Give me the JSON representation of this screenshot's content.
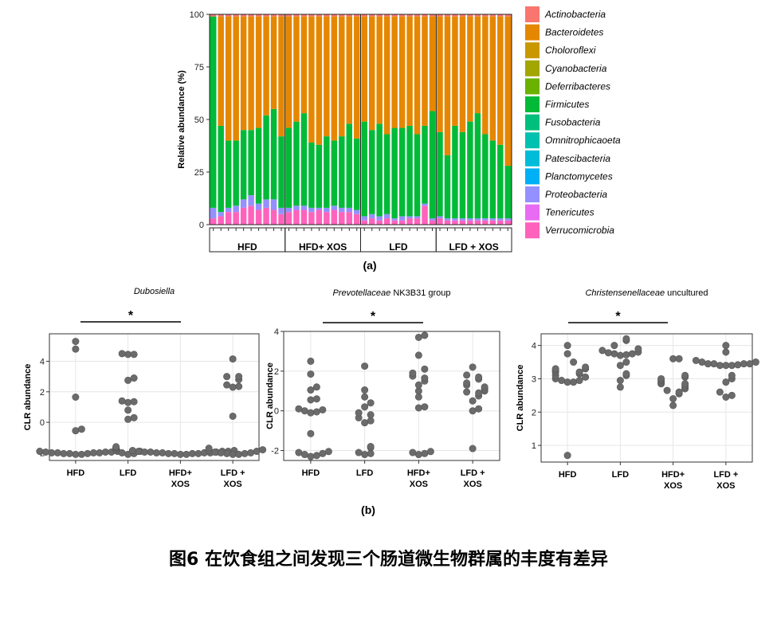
{
  "chart_data": [
    {
      "type": "stacked-bar",
      "panel_label": "(a)",
      "ylabel": "Relative abundance (%)",
      "ylim": [
        0,
        100
      ],
      "yticks": [
        0,
        25,
        50,
        75,
        100
      ],
      "groups": [
        "HFD",
        "HFD+ XOS",
        "LFD",
        "LFD + XOS"
      ],
      "bars_per_group": 10,
      "legend": [
        {
          "name": "Actinobacteria",
          "color": "#F8766D"
        },
        {
          "name": "Bacteroidetes",
          "color": "#E58700"
        },
        {
          "name": "Choloroflexi",
          "color": "#C99800"
        },
        {
          "name": "Cyanobacteria",
          "color": "#A3A500"
        },
        {
          "name": "Deferribacteres",
          "color": "#6BB100"
        },
        {
          "name": "Firmicutes",
          "color": "#00BA38"
        },
        {
          "name": "Fusobacteria",
          "color": "#00BF7D"
        },
        {
          "name": "Omnitrophicaoeta",
          "color": "#00C0AF"
        },
        {
          "name": "Patescibacteria",
          "color": "#00BCD8"
        },
        {
          "name": "Planctomycetes",
          "color": "#00B0F6"
        },
        {
          "name": "Proteobacteria",
          "color": "#9590FF"
        },
        {
          "name": "Tenericutes",
          "color": "#E76BF3"
        },
        {
          "name": "Verrucomicrobia",
          "color": "#FF62BC"
        }
      ],
      "samples": [
        {
          "group": "HFD",
          "verrucomicrobia": 3,
          "proteobacteria": 5,
          "firmicutes": 91,
          "actinobacteria": 1
        },
        {
          "group": "HFD",
          "verrucomicrobia": 4,
          "proteobacteria": 2,
          "firmicutes": 41,
          "actinobacteria": 1
        },
        {
          "group": "HFD",
          "verrucomicrobia": 6,
          "proteobacteria": 2,
          "firmicutes": 32,
          "actinobacteria": 1
        },
        {
          "group": "HFD",
          "verrucomicrobia": 6,
          "proteobacteria": 3,
          "firmicutes": 31,
          "actinobacteria": 1
        },
        {
          "group": "HFD",
          "verrucomicrobia": 8,
          "proteobacteria": 4,
          "firmicutes": 33,
          "actinobacteria": 1
        },
        {
          "group": "HFD",
          "verrucomicrobia": 9,
          "proteobacteria": 5,
          "firmicutes": 31,
          "actinobacteria": 1
        },
        {
          "group": "HFD",
          "verrucomicrobia": 7,
          "proteobacteria": 3,
          "firmicutes": 36,
          "actinobacteria": 1
        },
        {
          "group": "HFD",
          "verrucomicrobia": 8,
          "proteobacteria": 4,
          "firmicutes": 40,
          "actinobacteria": 1
        },
        {
          "group": "HFD",
          "verrucomicrobia": 7,
          "proteobacteria": 5,
          "firmicutes": 43,
          "actinobacteria": 1
        },
        {
          "group": "HFD",
          "verrucomicrobia": 5,
          "proteobacteria": 3,
          "firmicutes": 34,
          "actinobacteria": 1
        },
        {
          "group": "HFD+ XOS",
          "verrucomicrobia": 6,
          "proteobacteria": 2,
          "firmicutes": 38,
          "actinobacteria": 1
        },
        {
          "group": "HFD+ XOS",
          "verrucomicrobia": 7,
          "proteobacteria": 2,
          "firmicutes": 40,
          "actinobacteria": 1
        },
        {
          "group": "HFD+ XOS",
          "verrucomicrobia": 7,
          "proteobacteria": 2,
          "firmicutes": 44,
          "actinobacteria": 1
        },
        {
          "group": "HFD+ XOS",
          "verrucomicrobia": 6,
          "proteobacteria": 2,
          "firmicutes": 31,
          "actinobacteria": 1
        },
        {
          "group": "HFD+ XOS",
          "verrucomicrobia": 7,
          "proteobacteria": 1,
          "firmicutes": 30,
          "actinobacteria": 1
        },
        {
          "group": "HFD+ XOS",
          "verrucomicrobia": 6,
          "proteobacteria": 2,
          "firmicutes": 34,
          "actinobacteria": 1
        },
        {
          "group": "HFD+ XOS",
          "verrucomicrobia": 7,
          "proteobacteria": 2,
          "firmicutes": 31,
          "actinobacteria": 1
        },
        {
          "group": "HFD+ XOS",
          "verrucomicrobia": 6,
          "proteobacteria": 2,
          "firmicutes": 34,
          "actinobacteria": 1
        },
        {
          "group": "HFD+ XOS",
          "verrucomicrobia": 6,
          "proteobacteria": 2,
          "firmicutes": 40,
          "actinobacteria": 1
        },
        {
          "group": "HFD+ XOS",
          "verrucomicrobia": 5,
          "proteobacteria": 2,
          "firmicutes": 34,
          "actinobacteria": 1
        },
        {
          "group": "LFD",
          "verrucomicrobia": 2,
          "proteobacteria": 2,
          "firmicutes": 45,
          "actinobacteria": 1
        },
        {
          "group": "LFD",
          "verrucomicrobia": 3,
          "proteobacteria": 2,
          "firmicutes": 40,
          "actinobacteria": 1
        },
        {
          "group": "LFD",
          "verrucomicrobia": 2,
          "proteobacteria": 2,
          "firmicutes": 44,
          "actinobacteria": 1
        },
        {
          "group": "LFD",
          "verrucomicrobia": 3,
          "proteobacteria": 2,
          "firmicutes": 38,
          "actinobacteria": 1
        },
        {
          "group": "LFD",
          "verrucomicrobia": 2,
          "proteobacteria": 1,
          "firmicutes": 43,
          "actinobacteria": 1
        },
        {
          "group": "LFD",
          "verrucomicrobia": 2,
          "proteobacteria": 2,
          "firmicutes": 42,
          "actinobacteria": 1
        },
        {
          "group": "LFD",
          "verrucomicrobia": 3,
          "proteobacteria": 1,
          "firmicutes": 43,
          "actinobacteria": 1
        },
        {
          "group": "LFD",
          "verrucomicrobia": 3,
          "proteobacteria": 1,
          "firmicutes": 39,
          "actinobacteria": 1
        },
        {
          "group": "LFD",
          "verrucomicrobia": 9,
          "proteobacteria": 1,
          "firmicutes": 37,
          "actinobacteria": 1
        },
        {
          "group": "LFD",
          "verrucomicrobia": 2,
          "proteobacteria": 1,
          "firmicutes": 51,
          "actinobacteria": 1
        },
        {
          "group": "LFD + XOS",
          "verrucomicrobia": 3,
          "proteobacteria": 1,
          "firmicutes": 40,
          "actinobacteria": 1
        },
        {
          "group": "LFD + XOS",
          "verrucomicrobia": 2,
          "proteobacteria": 1,
          "firmicutes": 30,
          "actinobacteria": 1
        },
        {
          "group": "LFD + XOS",
          "verrucomicrobia": 2,
          "proteobacteria": 1,
          "firmicutes": 44,
          "actinobacteria": 1
        },
        {
          "group": "LFD + XOS",
          "verrucomicrobia": 2,
          "proteobacteria": 1,
          "firmicutes": 41,
          "actinobacteria": 1
        },
        {
          "group": "LFD + XOS",
          "verrucomicrobia": 2,
          "proteobacteria": 1,
          "firmicutes": 46,
          "actinobacteria": 1
        },
        {
          "group": "LFD + XOS",
          "verrucomicrobia": 2,
          "proteobacteria": 1,
          "firmicutes": 50,
          "actinobacteria": 1
        },
        {
          "group": "LFD + XOS",
          "verrucomicrobia": 2,
          "proteobacteria": 1,
          "firmicutes": 40,
          "actinobacteria": 1
        },
        {
          "group": "LFD + XOS",
          "verrucomicrobia": 2,
          "proteobacteria": 1,
          "firmicutes": 37,
          "actinobacteria": 1
        },
        {
          "group": "LFD + XOS",
          "verrucomicrobia": 2,
          "proteobacteria": 1,
          "firmicutes": 35,
          "actinobacteria": 1
        },
        {
          "group": "LFD + XOS",
          "verrucomicrobia": 2,
          "proteobacteria": 1,
          "firmicutes": 25,
          "actinobacteria": 1
        }
      ]
    },
    {
      "type": "scatter",
      "panel_label": "(b)",
      "title": "Dubosiella",
      "title_italic": true,
      "title_suffix": "",
      "ylabel": "CLR abundance",
      "ylim": [
        -2.5,
        5.8
      ],
      "yticks": [
        -2,
        0,
        2,
        4
      ],
      "categories": [
        "HFD",
        "LFD",
        "HFD+\nXOS",
        "LFD +\nXOS"
      ],
      "significance": {
        "from": 0,
        "to": 2,
        "label": "*"
      },
      "points": [
        [
          5.3,
          4.8,
          1.65,
          -0.45,
          -0.55,
          -1.9,
          -1.95,
          -2.0,
          -2.0,
          -2.05,
          -2.05,
          -2.05,
          -2.1,
          -2.1,
          -2.0,
          -2.0,
          -1.95,
          -1.95,
          -1.9
        ],
        [
          4.5,
          4.45,
          4.45,
          2.9,
          2.75,
          1.4,
          1.35,
          1.3,
          0.8,
          0.2,
          0.3,
          -1.6,
          -1.65,
          -1.7,
          -1.8,
          -1.9,
          -2.0,
          -2.05,
          -2.1
        ],
        [
          -1.85,
          -1.9,
          -1.95,
          -1.95,
          -2.0,
          -2.0,
          -2.05,
          -2.05,
          -2.05,
          -2.1,
          -2.1,
          -2.05,
          -2.0,
          -2.0,
          -1.95,
          -1.9,
          -1.9,
          -1.85
        ],
        [
          4.15,
          3.0,
          3.0,
          2.8,
          2.45,
          2.3,
          2.35,
          0.4,
          -1.7,
          -1.8,
          -1.85,
          -1.9,
          -1.95,
          -2.0,
          -2.0,
          -2.05,
          -2.05,
          -2.1,
          -2.1
        ]
      ]
    },
    {
      "type": "scatter",
      "title": "Prevotellaceae",
      "title_italic": true,
      "title_suffix": " NK3B31 group",
      "ylabel": "CLR abundance",
      "ylim": [
        -2.5,
        4.0
      ],
      "yticks": [
        -2,
        0,
        2,
        4
      ],
      "categories": [
        "HFD",
        "LFD",
        "HFD+\nXOS",
        "LFD +\nXOS"
      ],
      "significance": {
        "from": 0,
        "to": 2,
        "label": "*"
      },
      "points": [
        [
          2.5,
          1.85,
          1.2,
          1.05,
          0.6,
          0.55,
          0.1,
          0.0,
          -0.1,
          -0.05,
          0.05,
          -1.15,
          -2.05,
          -2.15,
          -2.25,
          -2.3,
          -2.2,
          -2.1
        ],
        [
          2.25,
          1.05,
          0.7,
          0.4,
          0.2,
          -0.1,
          -0.2,
          -0.35,
          -0.5,
          -0.6,
          -1.8,
          -1.85,
          -2.1,
          -2.15,
          -2.2
        ],
        [
          3.8,
          3.7,
          2.8,
          2.1,
          1.9,
          1.75,
          1.5,
          1.65,
          1.3,
          1.0,
          0.7,
          0.2,
          0.15,
          -2.05,
          -2.1,
          -2.15,
          -2.2
        ],
        [
          2.2,
          1.8,
          1.7,
          1.6,
          1.4,
          1.3,
          1.2,
          1.1,
          1.0,
          0.95,
          0.9,
          0.75,
          0.5,
          0.1,
          0.0,
          -1.9
        ]
      ]
    },
    {
      "type": "scatter",
      "title": "Christensenellaceae",
      "title_italic": true,
      "title_suffix": " uncultured",
      "ylabel": "CLR abundance",
      "ylim": [
        0.5,
        4.35
      ],
      "yticks": [
        1,
        2,
        3,
        4
      ],
      "categories": [
        "HFD",
        "LFD",
        "HFD+\nXOS",
        "LFD +\nXOS"
      ],
      "significance": {
        "from": 0,
        "to": 2,
        "label": "*"
      },
      "points": [
        [
          4.0,
          3.75,
          3.5,
          3.35,
          3.3,
          3.3,
          3.25,
          3.2,
          3.2,
          3.15,
          3.1,
          3.05,
          3.0,
          2.95,
          2.95,
          2.9,
          2.9,
          0.7
        ],
        [
          4.2,
          4.15,
          4.0,
          3.9,
          3.85,
          3.8,
          3.78,
          3.75,
          3.75,
          3.72,
          3.7,
          3.5,
          3.4,
          3.15,
          3.1,
          2.95,
          2.75
        ],
        [
          3.6,
          3.6,
          3.1,
          3.05,
          3.0,
          2.95,
          2.9,
          2.85,
          2.85,
          2.8,
          2.75,
          2.7,
          2.65,
          2.6,
          2.55,
          2.4,
          2.2
        ],
        [
          4.0,
          3.8,
          3.55,
          3.5,
          3.45,
          3.45,
          3.42,
          3.4,
          3.4,
          3.4,
          3.45,
          3.45,
          3.5,
          3.1,
          3.0,
          2.9,
          2.6,
          2.5,
          2.45
        ]
      ]
    }
  ],
  "caption": "图6 在饮食组之间发现三个肠道微生物群属的丰度有差异"
}
